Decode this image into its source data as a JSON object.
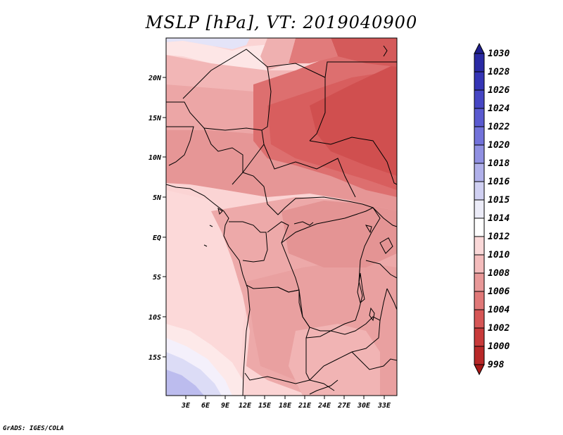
{
  "title": "MSLP [hPa], VT: 2019040900",
  "credit": "GrADS: IGES/COLA",
  "map": {
    "lat_ticks": [
      "20N",
      "15N",
      "10N",
      "5N",
      "EQ",
      "5S",
      "10S",
      "15S"
    ],
    "lon_ticks": [
      "3E",
      "6E",
      "9E",
      "12E",
      "15E",
      "18E",
      "21E",
      "24E",
      "27E",
      "30E",
      "33E"
    ]
  },
  "colorbar": {
    "labels": [
      "1030",
      "1028",
      "1026",
      "1024",
      "1022",
      "1020",
      "1018",
      "1016",
      "1015",
      "1014",
      "1012",
      "1010",
      "1008",
      "1006",
      "1004",
      "1002",
      "1000",
      "998"
    ],
    "colors": [
      "#1f1f8e",
      "#2a2aa4",
      "#3535b6",
      "#4646c4",
      "#5a5ad0",
      "#7272da",
      "#9090e2",
      "#b0b0ea",
      "#d0d0f2",
      "#ececf8",
      "#ffffff",
      "#fad8d8",
      "#f4bcbc",
      "#e89898",
      "#e07878",
      "#d65656",
      "#c83a3a",
      "#b82828",
      "#a81818"
    ]
  },
  "colors": {
    "land_outline": "#000000"
  }
}
